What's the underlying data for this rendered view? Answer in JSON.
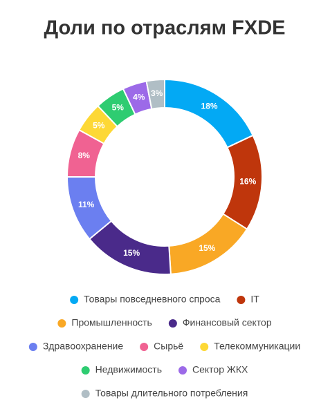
{
  "chart_data": {
    "type": "donut",
    "title": "Доли по отраслям FXDE",
    "categories": [
      "Товары повседневного спроса",
      "IT",
      "Промышленность",
      "Финансовый сектор",
      "Здравоохранение",
      "Сырьё",
      "Телекоммуникации",
      "Недвижимость",
      "Сектор ЖКХ",
      "Товары длительного потребления"
    ],
    "values": [
      18,
      16,
      15,
      15,
      11,
      8,
      5,
      5,
      4,
      3
    ],
    "value_labels": [
      "18%",
      "16%",
      "15%",
      "15%",
      "11%",
      "8%",
      "5%",
      "5%",
      "4%",
      "3%"
    ],
    "colors": [
      "#03a9f4",
      "#bf360c",
      "#f9a825",
      "#4a2a8a",
      "#6b7ff0",
      "#f06292",
      "#fdd835",
      "#2ecc71",
      "#9c6ae8",
      "#b0bec5"
    ],
    "legend": "bottom"
  }
}
